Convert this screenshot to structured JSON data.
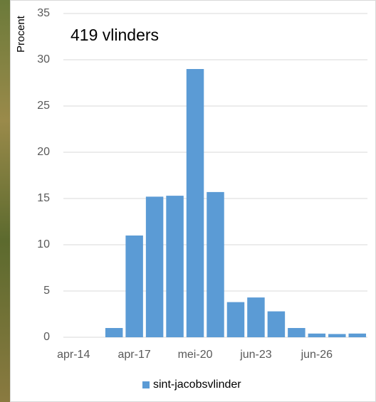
{
  "chart_data": {
    "type": "bar",
    "annotation": "419 vlinders",
    "y_label": "Procent",
    "categories": [
      "apr-14",
      null,
      null,
      "apr-17",
      null,
      null,
      "mei-20",
      null,
      null,
      "jun-23",
      null,
      null,
      "jun-26",
      null,
      null
    ],
    "series": [
      {
        "name": "sint-jacobsvlinder",
        "color": "#5b9bd5",
        "values": [
          0,
          0,
          1.0,
          11.0,
          15.2,
          15.3,
          29.0,
          15.7,
          3.8,
          4.3,
          2.8,
          1.0,
          0.4,
          0.35,
          0.4
        ]
      }
    ],
    "ylim": [
      0,
      35
    ],
    "yticks": [
      0,
      5,
      10,
      15,
      20,
      25,
      30,
      35
    ],
    "grid": true,
    "legend": "bottom"
  }
}
